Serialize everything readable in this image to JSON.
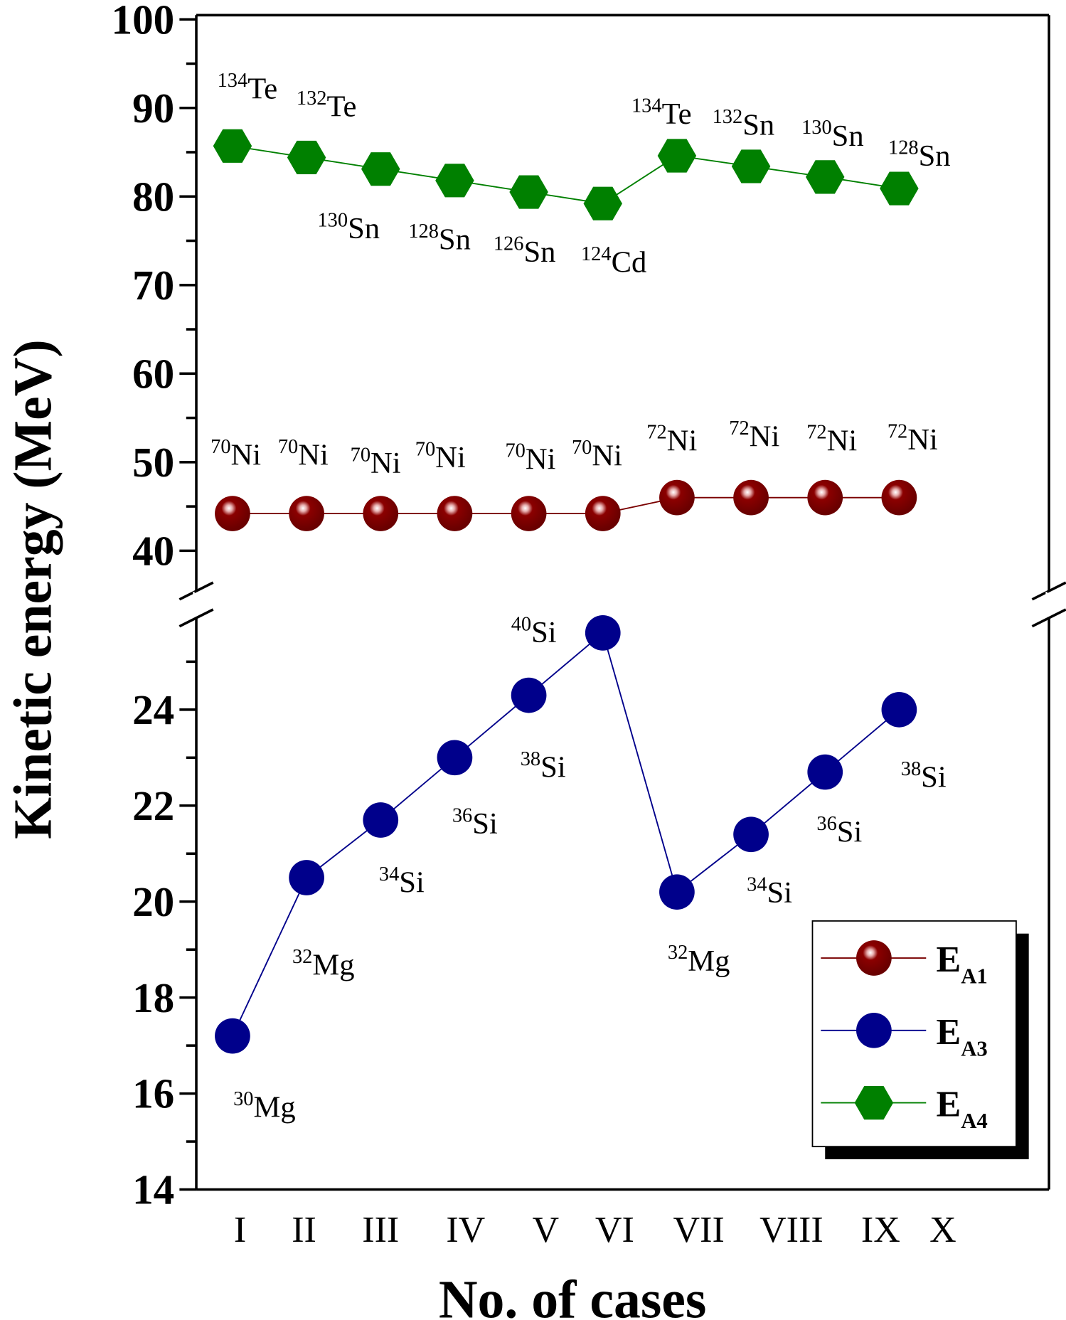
{
  "chart_data": {
    "type": "line",
    "xlabel": "No. of cases",
    "ylabel": "Kinetic energy (MeV)",
    "categories": [
      "I",
      "II",
      "III",
      "IV",
      "V",
      "VI",
      "VII",
      "VIII",
      "IX",
      "X"
    ],
    "y_axis_break": {
      "lower_range": [
        14,
        26
      ],
      "upper_range": [
        35,
        100
      ]
    },
    "upper_ticks": [
      40,
      50,
      60,
      70,
      80,
      90,
      100
    ],
    "lower_ticks": [
      14,
      16,
      18,
      20,
      22,
      24
    ],
    "legend_position": "bottom-right",
    "series": [
      {
        "name": "E",
        "sub": "A1",
        "color": "#7a0000",
        "marker": "sphere",
        "values": [
          44.2,
          44.2,
          44.2,
          44.2,
          44.2,
          44.2,
          46.0,
          46.0,
          46.0,
          46.0
        ],
        "labels": [
          {
            "m": "70",
            "e": "Ni"
          },
          {
            "m": "70",
            "e": "Ni"
          },
          {
            "m": "70",
            "e": "Ni"
          },
          {
            "m": "70",
            "e": "Ni"
          },
          {
            "m": "70",
            "e": "Ni"
          },
          {
            "m": "70",
            "e": "Ni"
          },
          {
            "m": "72",
            "e": "Ni"
          },
          {
            "m": "72",
            "e": "Ni"
          },
          {
            "m": "72",
            "e": "Ni"
          },
          {
            "m": "72",
            "e": "Ni"
          }
        ]
      },
      {
        "name": "E",
        "sub": "A3",
        "color": "#00008b",
        "marker": "circle",
        "values": [
          17.2,
          20.5,
          21.7,
          23.0,
          24.3,
          25.6,
          20.2,
          21.4,
          22.7,
          24.0
        ],
        "labels": [
          {
            "m": "30",
            "e": "Mg"
          },
          {
            "m": "32",
            "e": "Mg"
          },
          {
            "m": "34",
            "e": "Si"
          },
          {
            "m": "36",
            "e": "Si"
          },
          {
            "m": "38",
            "e": "Si"
          },
          {
            "m": "40",
            "e": "Si"
          },
          {
            "m": "32",
            "e": "Mg"
          },
          {
            "m": "34",
            "e": "Si"
          },
          {
            "m": "36",
            "e": "Si"
          },
          {
            "m": "38",
            "e": "Si"
          }
        ]
      },
      {
        "name": "E",
        "sub": "A4",
        "color": "#008000",
        "marker": "hexagon",
        "values": [
          85.7,
          84.4,
          83.1,
          81.8,
          80.5,
          79.2,
          84.6,
          83.4,
          82.2,
          80.9
        ],
        "labels": [
          {
            "m": "134",
            "e": "Te"
          },
          {
            "m": "132",
            "e": "Te"
          },
          {
            "m": "130",
            "e": "Sn"
          },
          {
            "m": "128",
            "e": "Sn"
          },
          {
            "m": "126",
            "e": "Sn"
          },
          {
            "m": "124",
            "e": "Cd"
          },
          {
            "m": "134",
            "e": "Te"
          },
          {
            "m": "132",
            "e": "Sn"
          },
          {
            "m": "130",
            "e": "Sn"
          },
          {
            "m": "128",
            "e": "Sn"
          }
        ]
      }
    ]
  }
}
